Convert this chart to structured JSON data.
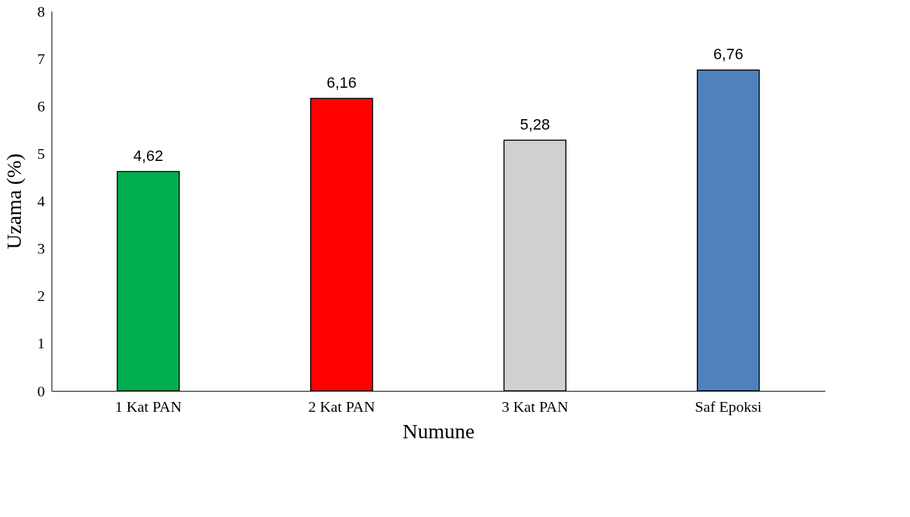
{
  "chart_data": {
    "type": "bar",
    "xlabel": "Numune",
    "ylabel": "Uzama (%)",
    "categories": [
      "1 Kat PAN",
      "2 Kat PAN",
      "3 Kat PAN",
      "Saf Epoksi"
    ],
    "values": [
      4.62,
      6.16,
      5.28,
      6.76
    ],
    "colors": [
      "#00b050",
      "#ff0000",
      "#d0d0d0",
      "#4f81bd"
    ],
    "value_labels": [
      "4,62",
      "6,16",
      "5,28",
      "6,76"
    ],
    "ylim": [
      0,
      8
    ],
    "yticks": [
      0,
      1,
      2,
      3,
      4,
      5,
      6,
      7,
      8
    ],
    "grid": false
  }
}
